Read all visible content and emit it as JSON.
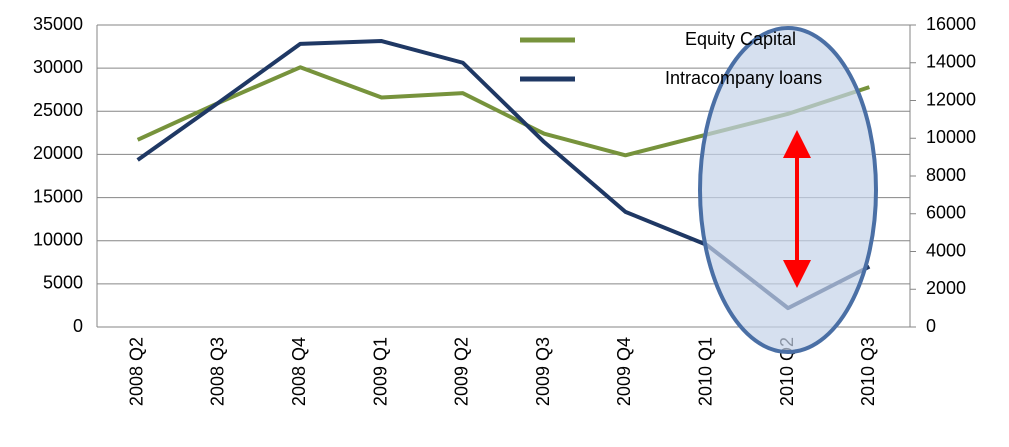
{
  "chart_data": {
    "type": "line",
    "categories": [
      "2008 Q2",
      "2008 Q3",
      "2008 Q4",
      "2009 Q1",
      "2009 Q2",
      "2009 Q3",
      "2009 Q4",
      "2010 Q1",
      "2010 Q2",
      "2010 Q3"
    ],
    "series": [
      {
        "name": "Equity Capital",
        "color": "#77933c",
        "values": [
          21700,
          26000,
          30100,
          26600,
          27100,
          22400,
          19900,
          22300,
          24700,
          27800
        ]
      },
      {
        "name": "Intracompany loans",
        "color": "#1f3864",
        "axis": "y2",
        "values": [
          8850,
          11900,
          15000,
          15150,
          14000,
          9800,
          6100,
          4350,
          1000,
          3200
        ]
      }
    ],
    "ylim": [
      0,
      35000
    ],
    "yticks": [
      0,
      5000,
      10000,
      15000,
      20000,
      25000,
      30000,
      35000
    ],
    "y2lim": [
      0,
      16000
    ],
    "y2ticks": [
      0,
      2000,
      4000,
      6000,
      8000,
      10000,
      12000,
      14000,
      16000
    ],
    "grid": true
  }
}
